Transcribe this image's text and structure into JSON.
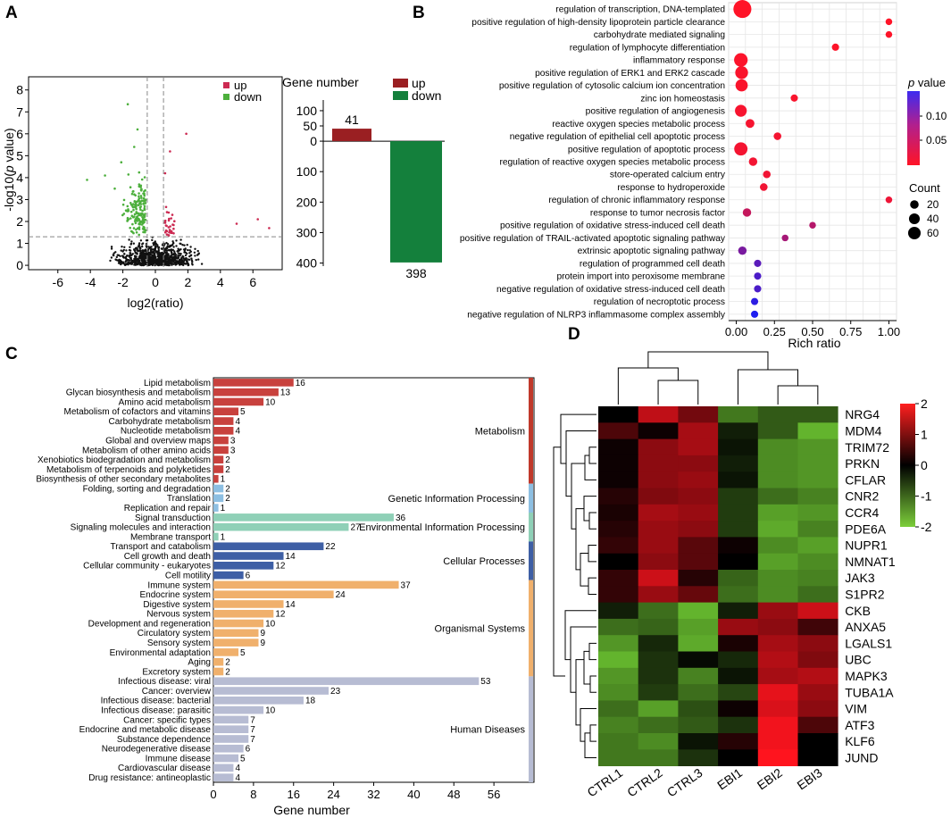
{
  "panels": {
    "A": {
      "label": "A",
      "volcano": {
        "xlabel": "log2(ratio)",
        "ylabel_prefix": "-log10(",
        "ylabel_p": "p",
        "ylabel_suffix": " value)",
        "xticks": [
          -6,
          -4,
          -2,
          0,
          2,
          4,
          6
        ],
        "yticks": [
          0,
          1,
          2,
          3,
          4,
          5,
          6,
          7,
          8
        ],
        "xlim": [
          -7.8,
          7.8
        ],
        "ylim": [
          -0.2,
          8.6
        ],
        "threshold_y": 1.3,
        "threshold_x": [
          -0.5,
          0.5
        ],
        "legend": [
          {
            "label": "up",
            "color": "#cc2a52"
          },
          {
            "label": "down",
            "color": "#4caf3c"
          }
        ],
        "colors": {
          "up": "#cc2a52",
          "down": "#4caf3c",
          "ns": "#111111"
        }
      },
      "bar": {
        "title": "Gene number",
        "yticks": [
          {
            "value": 100,
            "label": "100"
          },
          {
            "value": 50,
            "label": "50"
          },
          {
            "value": 0,
            "label": "0"
          },
          {
            "value": -100,
            "label": "100"
          },
          {
            "value": -200,
            "label": "200"
          },
          {
            "value": -300,
            "label": "300"
          },
          {
            "value": -400,
            "label": "400"
          }
        ],
        "ylim": [
          -410,
          135
        ],
        "series": [
          {
            "name": "up",
            "value": 41,
            "color": "#9a1f22",
            "label": "41"
          },
          {
            "name": "down",
            "value": -398,
            "color": "#14803c",
            "label": "398"
          }
        ]
      }
    },
    "B": {
      "label": "B",
      "chart_data": {
        "type": "scatter",
        "xlabel": "Rich ratio",
        "xticks": [
          0.0,
          0.25,
          0.5,
          0.75,
          1.0
        ],
        "xtick_labels": [
          "0.00",
          "0.25",
          "0.50",
          "0.75",
          "1.00"
        ],
        "xlim": [
          -0.05,
          1.05
        ],
        "color_legend_title_p": "p",
        "color_legend_title_rest": " value",
        "color_ticks": [
          "0.10",
          "0.05"
        ],
        "size_legend_title": "Count",
        "size_legend": [
          20,
          40,
          60
        ],
        "terms": [
          {
            "term": "regulation of transcription, DNA-templated",
            "rich": 0.04,
            "count": 65,
            "p": 0.001
          },
          {
            "term": "positive regulation of high-density lipoprotein particle clearance",
            "rich": 1.0,
            "count": 2,
            "p": 0.001
          },
          {
            "term": "carbohydrate mediated signaling",
            "rich": 1.0,
            "count": 2,
            "p": 0.002
          },
          {
            "term": "regulation of lymphocyte differentiation",
            "rich": 0.65,
            "count": 3,
            "p": 0.002
          },
          {
            "term": "inflammatory response",
            "rich": 0.03,
            "count": 30,
            "p": 0.003
          },
          {
            "term": "positive regulation of ERK1 and ERK2 cascade",
            "rich": 0.035,
            "count": 25,
            "p": 0.004
          },
          {
            "term": "positive regulation of cytosolic calcium ion concentration",
            "rich": 0.035,
            "count": 22,
            "p": 0.004
          },
          {
            "term": "zinc ion homeostasis",
            "rich": 0.38,
            "count": 3,
            "p": 0.005
          },
          {
            "term": "positive regulation of angiogenesis",
            "rich": 0.03,
            "count": 20,
            "p": 0.006
          },
          {
            "term": "reactive oxygen species metabolic process",
            "rich": 0.09,
            "count": 7,
            "p": 0.007
          },
          {
            "term": "negative regulation of epithelial cell apoptotic process",
            "rich": 0.27,
            "count": 4,
            "p": 0.008
          },
          {
            "term": "positive regulation of apoptotic process",
            "rich": 0.03,
            "count": 28,
            "p": 0.008
          },
          {
            "term": "regulation of reactive oxygen species metabolic process",
            "rich": 0.11,
            "count": 6,
            "p": 0.009
          },
          {
            "term": "store-operated calcium entry",
            "rich": 0.2,
            "count": 4,
            "p": 0.01
          },
          {
            "term": "response to hydroperoxide",
            "rich": 0.18,
            "count": 4,
            "p": 0.01
          },
          {
            "term": "regulation of chronic inflammatory response",
            "rich": 1.0,
            "count": 2,
            "p": 0.012
          },
          {
            "term": "response to tumor necrosis factor",
            "rich": 0.07,
            "count": 6,
            "p": 0.04
          },
          {
            "term": "positive regulation of oxidative stress-induced cell death",
            "rich": 0.5,
            "count": 2,
            "p": 0.05
          },
          {
            "term": "positive regulation of TRAIL-activated apoptotic signaling pathway",
            "rich": 0.32,
            "count": 2,
            "p": 0.06
          },
          {
            "term": "extrinsic apoptotic signaling pathway",
            "rich": 0.04,
            "count": 6,
            "p": 0.09
          },
          {
            "term": "regulation of programmed cell death",
            "rich": 0.14,
            "count": 3,
            "p": 0.11
          },
          {
            "term": "protein import into peroxisome membrane",
            "rich": 0.14,
            "count": 3,
            "p": 0.12
          },
          {
            "term": "negative regulation of oxidative stress-induced cell death",
            "rich": 0.14,
            "count": 3,
            "p": 0.12
          },
          {
            "term": "regulation of necroptotic process",
            "rich": 0.12,
            "count": 3,
            "p": 0.14
          },
          {
            "term": "negative regulation of NLRP3 inflammasome complex assembly",
            "rich": 0.12,
            "count": 3,
            "p": 0.15
          }
        ]
      }
    },
    "C": {
      "label": "C",
      "chart_data": {
        "type": "bar",
        "orientation": "horizontal",
        "xlabel": "Gene number",
        "xticks": [
          0,
          8,
          16,
          24,
          32,
          40,
          48,
          56
        ],
        "xlim": [
          0,
          64
        ],
        "groups": [
          {
            "name": "Metabolism",
            "color": "#c8413d",
            "stripe": "#c0392b",
            "items": [
              {
                "label": "Lipid metabolism",
                "value": 16
              },
              {
                "label": "Glycan biosynthesis and metabolism",
                "value": 13
              },
              {
                "label": "Amino acid metabolism",
                "value": 10
              },
              {
                "label": "Metabolism of cofactors and vitamins",
                "value": 5
              },
              {
                "label": "Carbohydrate metabolism",
                "value": 4
              },
              {
                "label": "Nucleotide metabolism",
                "value": 4
              },
              {
                "label": "Global and overview maps",
                "value": 3
              },
              {
                "label": "Metabolism of other amino acids",
                "value": 3
              },
              {
                "label": "Xenobiotics biodegradation and metabolism",
                "value": 2
              },
              {
                "label": "Metabolism of terpenoids and polyketides",
                "value": 2
              },
              {
                "label": "Biosynthesis of other secondary metabolites",
                "value": 1
              }
            ]
          },
          {
            "name": "Genetic Information Processing",
            "color": "#8dbfe2",
            "stripe": "#8dbfe2",
            "items": [
              {
                "label": "Folding, sorting and degradation",
                "value": 2
              },
              {
                "label": "Translation",
                "value": 2
              },
              {
                "label": "Replication and repair",
                "value": 1
              }
            ]
          },
          {
            "name": "Environmental Information Processing",
            "color": "#8fd0b7",
            "stripe": "#8fd0b7",
            "items": [
              {
                "label": "Signal transduction",
                "value": 36
              },
              {
                "label": "Signaling molecules and interaction",
                "value": 27
              },
              {
                "label": "Membrane transport",
                "value": 1
              }
            ]
          },
          {
            "name": "Cellular Processes",
            "color": "#3e5fa5",
            "stripe": "#3e5fa5",
            "items": [
              {
                "label": "Transport and catabolism",
                "value": 22
              },
              {
                "label": "Cell growth and death",
                "value": 14
              },
              {
                "label": "Cellular community - eukaryotes",
                "value": 12
              },
              {
                "label": "Cell motility",
                "value": 6
              }
            ]
          },
          {
            "name": "Organismal Systems",
            "color": "#f0b06c",
            "stripe": "#f0b06c",
            "items": [
              {
                "label": "Immune system",
                "value": 37
              },
              {
                "label": "Endocrine system",
                "value": 24
              },
              {
                "label": "Digestive system",
                "value": 14
              },
              {
                "label": "Nervous system",
                "value": 12
              },
              {
                "label": "Development and regeneration",
                "value": 10
              },
              {
                "label": "Circulatory system",
                "value": 9
              },
              {
                "label": "Sensory system",
                "value": 9
              },
              {
                "label": "Environmental adaptation",
                "value": 5
              },
              {
                "label": "Aging",
                "value": 2
              },
              {
                "label": "Excretory system",
                "value": 2
              }
            ]
          },
          {
            "name": "Human Diseases",
            "color": "#b7bcd3",
            "stripe": "#b7bcd3",
            "items": [
              {
                "label": "Infectious disease: viral",
                "value": 53
              },
              {
                "label": "Cancer: overview",
                "value": 23
              },
              {
                "label": "Infectious disease: bacterial",
                "value": 18
              },
              {
                "label": "Infectious disease: parasitic",
                "value": 10
              },
              {
                "label": "Cancer: specific types",
                "value": 7
              },
              {
                "label": "Endocrine and metabolic disease",
                "value": 7
              },
              {
                "label": "Substance dependence",
                "value": 7
              },
              {
                "label": "Neurodegenerative disease",
                "value": 6
              },
              {
                "label": "Immune disease",
                "value": 5
              },
              {
                "label": "Cardiovascular disease",
                "value": 4
              },
              {
                "label": "Drug resistance: antineoplastic",
                "value": 4
              }
            ]
          }
        ]
      }
    },
    "D": {
      "label": "D",
      "chart_data": {
        "type": "heatmap",
        "columns": [
          "CTRL1",
          "CTRL2",
          "CTRL3",
          "EBI1",
          "EBI2",
          "EBI3"
        ],
        "rows": [
          "NRG4",
          "MDM4",
          "TRIM72",
          "PRKN",
          "CFLAR",
          "CNR2",
          "CCR4",
          "PDE6A",
          "NUPR1",
          "NMNAT1",
          "JAK3",
          "S1PR2",
          "CKB",
          "ANXA5",
          "LGALS1",
          "UBC",
          "MAPK3",
          "TUBA1A",
          "VIM",
          "ATF3",
          "KLF6",
          "JUND"
        ],
        "values": [
          [
            0.0,
            1.5,
            0.9,
            -1.2,
            -0.9,
            -0.9
          ],
          [
            0.6,
            0.1,
            1.3,
            -0.3,
            -0.9,
            -1.8
          ],
          [
            0.1,
            1.1,
            1.3,
            -0.2,
            -1.4,
            -1.5
          ],
          [
            0.1,
            1.1,
            1.1,
            -0.3,
            -1.4,
            -1.5
          ],
          [
            0.1,
            1.1,
            1.2,
            -0.2,
            -1.4,
            -1.5
          ],
          [
            0.3,
            1.0,
            1.1,
            -0.6,
            -1.1,
            -1.3
          ],
          [
            0.2,
            1.3,
            1.2,
            -0.6,
            -1.6,
            -1.5
          ],
          [
            0.3,
            1.2,
            1.1,
            -0.6,
            -1.7,
            -1.3
          ],
          [
            0.4,
            1.2,
            0.7,
            0.1,
            -1.4,
            -1.6
          ],
          [
            0.0,
            1.1,
            0.7,
            0.0,
            -1.6,
            -1.4
          ],
          [
            0.4,
            1.6,
            0.3,
            -1.0,
            -1.4,
            -1.3
          ],
          [
            0.4,
            1.2,
            0.8,
            -1.1,
            -1.4,
            -1.1
          ],
          [
            -0.3,
            -1.1,
            -1.8,
            -0.3,
            1.2,
            1.6
          ],
          [
            -1.1,
            -1.0,
            -1.6,
            1.2,
            1.1,
            0.5
          ],
          [
            -1.5,
            -0.4,
            -1.7,
            0.2,
            1.3,
            1.1
          ],
          [
            -1.8,
            -0.5,
            -0.1,
            -0.4,
            1.4,
            1.0
          ],
          [
            -1.5,
            -0.5,
            -1.3,
            -0.2,
            1.3,
            1.4
          ],
          [
            -1.4,
            -0.6,
            -1.1,
            -0.7,
            1.8,
            1.2
          ],
          [
            -1.1,
            -1.6,
            -0.8,
            0.1,
            1.7,
            1.1
          ],
          [
            -1.3,
            -1.1,
            -0.9,
            -0.5,
            1.9,
            0.6
          ],
          [
            -1.2,
            -1.4,
            -0.2,
            0.3,
            1.9,
            0.0
          ],
          [
            -1.2,
            -1.2,
            -0.5,
            0.0,
            2.0,
            0.0
          ]
        ],
        "scale_ticks": [
          2,
          1,
          0,
          -1,
          -2
        ],
        "scale_labels": [
          "2",
          "1",
          "0",
          "-1",
          "-2"
        ]
      }
    }
  }
}
